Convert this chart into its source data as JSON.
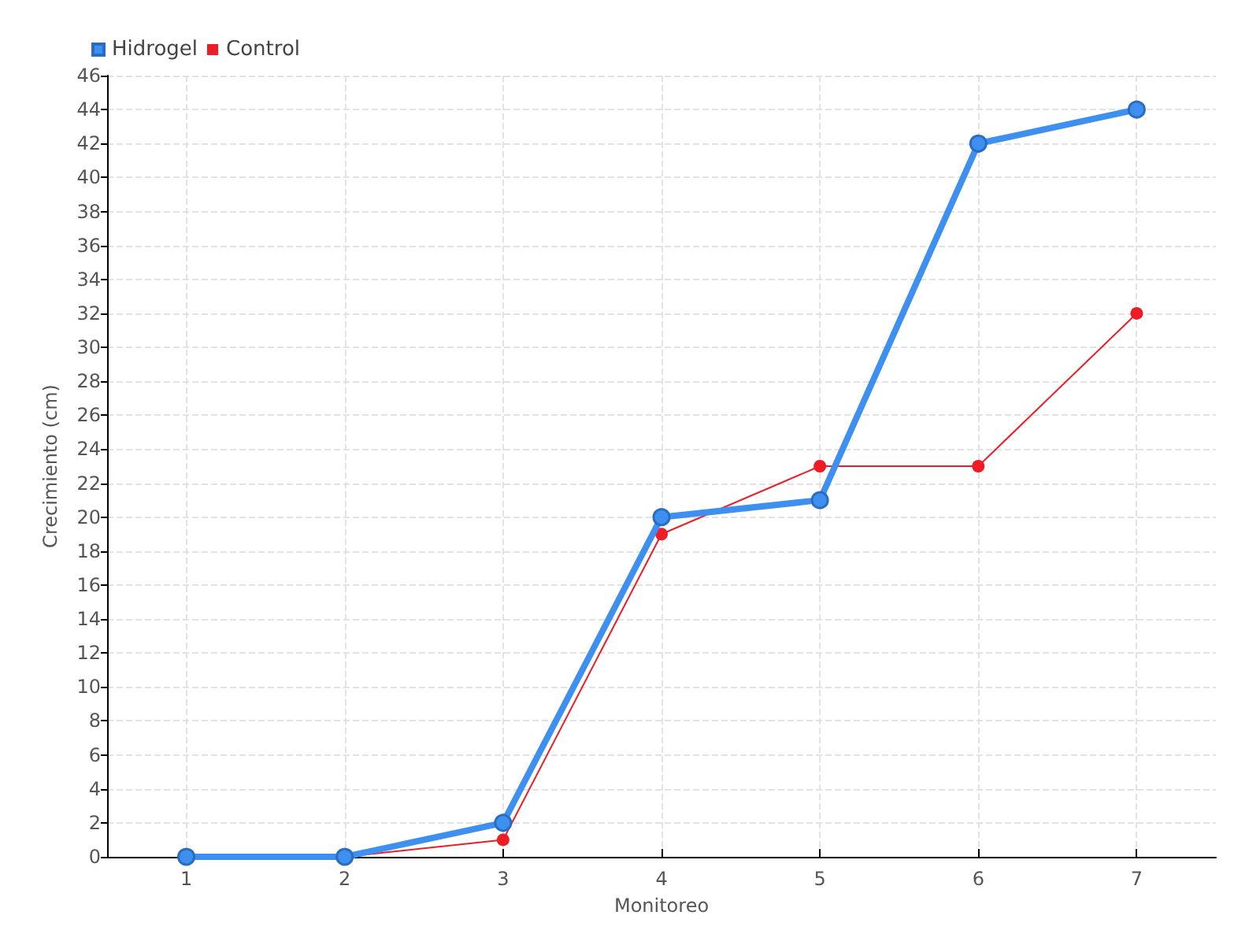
{
  "chart_data": {
    "type": "line",
    "xlabel": "Monitoreo",
    "ylabel": "Crecimiento (cm)",
    "x": [
      1,
      2,
      3,
      4,
      5,
      6,
      7
    ],
    "xlim": [
      0.5,
      7.5
    ],
    "xticks": [
      1,
      2,
      3,
      4,
      5,
      6,
      7
    ],
    "ylim": [
      0,
      46
    ],
    "yticks": [
      0,
      2,
      4,
      6,
      8,
      10,
      12,
      14,
      16,
      18,
      20,
      22,
      24,
      26,
      28,
      30,
      32,
      34,
      36,
      38,
      40,
      42,
      44,
      46
    ],
    "series": [
      {
        "name": "Hidrogel",
        "color": "#3d8ff0",
        "values": [
          0,
          0,
          2,
          20,
          21,
          42,
          44
        ]
      },
      {
        "name": "Control",
        "color": "#ee1c25",
        "values": [
          0,
          0,
          1,
          19,
          23,
          23,
          32
        ]
      }
    ],
    "grid": true,
    "legend": "top left",
    "marker": "circle",
    "line_style": "solid"
  }
}
